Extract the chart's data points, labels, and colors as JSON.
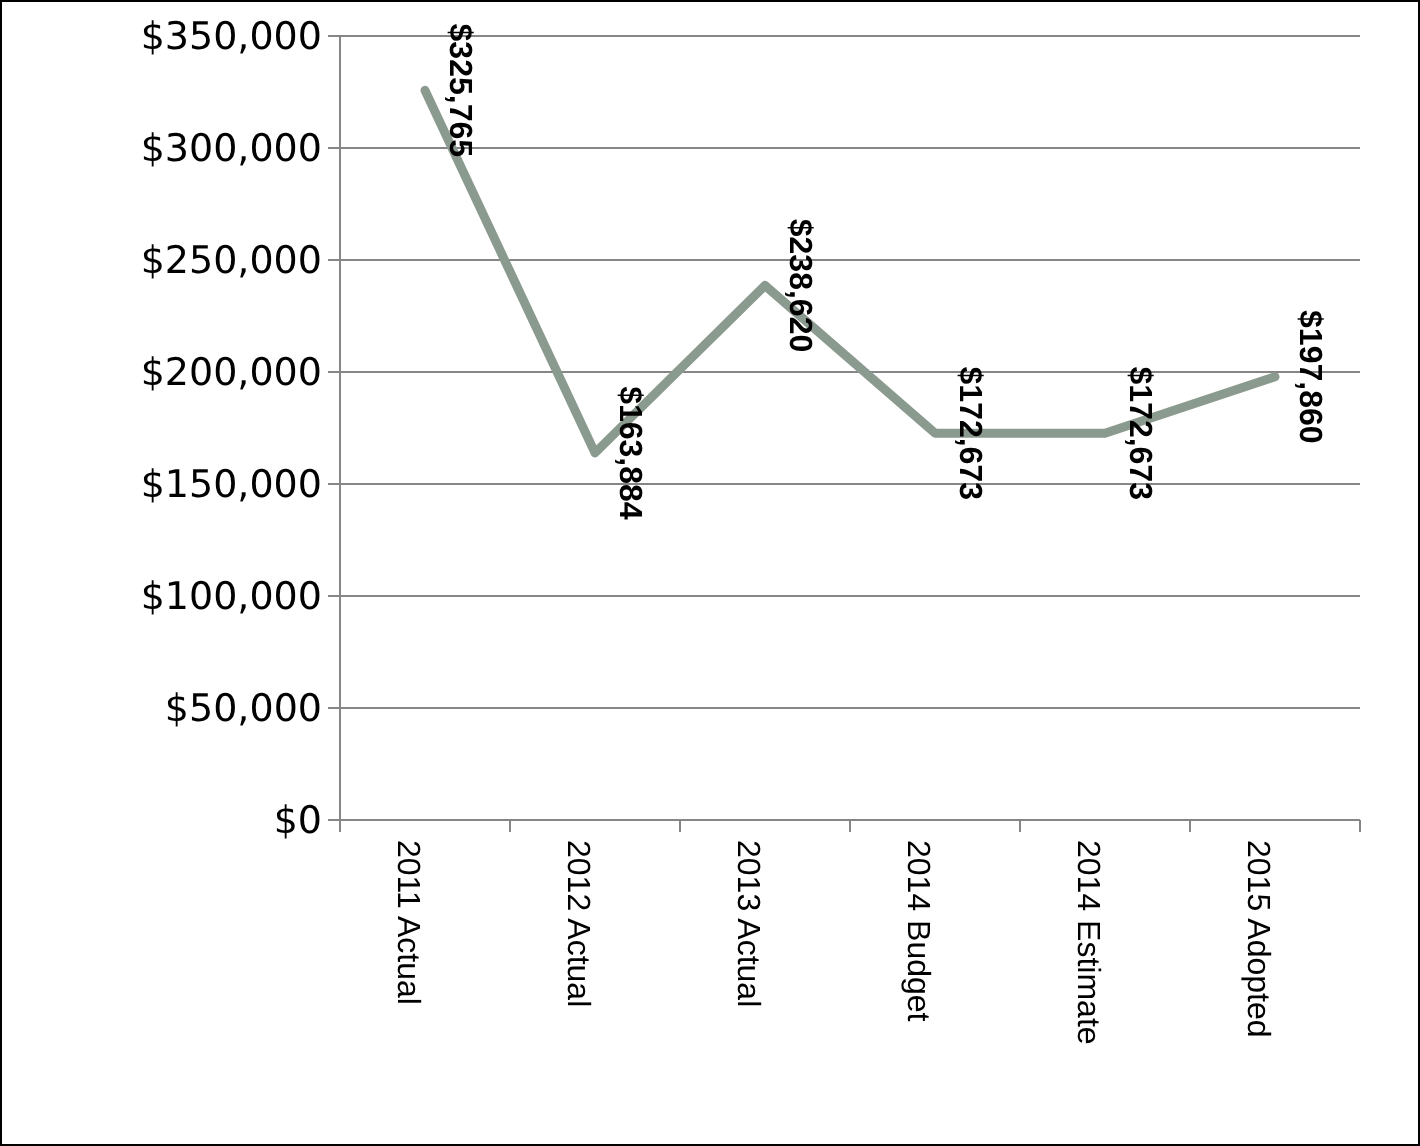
{
  "chart_data": {
    "type": "line",
    "categories": [
      "2011 Actual",
      "2012 Actual",
      "2013 Actual",
      "2014 Budget",
      "2014 Estimate",
      "2015 Adopted"
    ],
    "series": [
      {
        "color": "#8b9a8f",
        "values": [
          325765,
          163884,
          238620,
          172673,
          172673,
          197860
        ]
      }
    ],
    "ylim": [
      0,
      350000
    ],
    "yticks": [
      {
        "value": 0,
        "label": "$0"
      },
      {
        "value": 50000,
        "label": "$50,000"
      },
      {
        "value": 100000,
        "label": "$100,000"
      },
      {
        "value": 150000,
        "label": "$150,000"
      },
      {
        "value": 200000,
        "label": "$200,000"
      },
      {
        "value": 250000,
        "label": "$250,000"
      },
      {
        "value": 300000,
        "label": "$300,000"
      },
      {
        "value": 350000,
        "label": "$350,000"
      }
    ],
    "grid": "y",
    "marker": "none",
    "line_style": "solid",
    "value_labels": [
      "$325,765",
      "$163,884",
      "$238,620",
      "$172,673",
      "$172,673",
      "$197,860"
    ]
  }
}
